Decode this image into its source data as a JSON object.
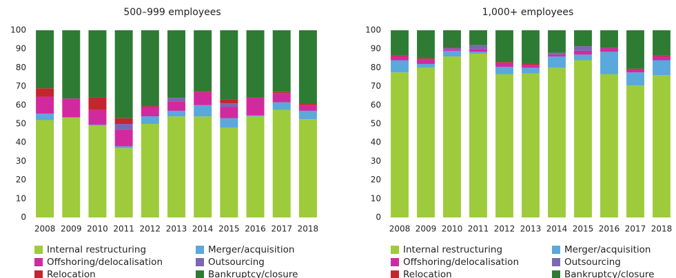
{
  "chart_data": [
    {
      "type": "bar",
      "stacked": true,
      "title": "500–999 employees",
      "categories": [
        "2008",
        "2009",
        "2010",
        "2011",
        "2012",
        "2013",
        "2014",
        "2015",
        "2016",
        "2017",
        "2018"
      ],
      "ylim": [
        0,
        100
      ],
      "yticks": [
        0,
        10,
        20,
        30,
        40,
        50,
        60,
        70,
        80,
        90,
        100
      ],
      "grid": false,
      "series": [
        {
          "name": "Internal restructuring",
          "color": "#9dcb3b",
          "values": [
            52,
            53.5,
            49,
            37,
            50,
            54,
            54,
            48,
            54,
            57.5,
            52.5
          ]
        },
        {
          "name": "Merger/acquisition",
          "color": "#5aa8dc",
          "values": [
            3.5,
            0,
            0.5,
            1,
            4,
            3,
            6,
            5,
            0.5,
            4,
            4.5
          ]
        },
        {
          "name": "Offshoring/delocalisation",
          "color": "#d12a9f",
          "values": [
            9,
            10,
            8,
            9,
            5,
            5,
            7,
            6,
            9.5,
            5,
            3
          ]
        },
        {
          "name": "Outsourcing",
          "color": "#7b68b3",
          "values": [
            0,
            0,
            0,
            3,
            0,
            2,
            0,
            2,
            0,
            0,
            0
          ]
        },
        {
          "name": "Relocation",
          "color": "#c3262e",
          "values": [
            4.5,
            0,
            6.5,
            3,
            0.5,
            0,
            0.5,
            2,
            0,
            0.5,
            1
          ]
        },
        {
          "name": "Bankruptcy/closure",
          "color": "#2e7b34",
          "values": [
            31,
            36.5,
            36,
            47,
            40.5,
            36,
            32.5,
            37,
            36,
            33,
            39
          ]
        }
      ]
    },
    {
      "type": "bar",
      "stacked": true,
      "title": "1,000+ employees",
      "categories": [
        "2008",
        "2009",
        "2010",
        "2011",
        "2012",
        "2013",
        "2014",
        "2015",
        "2016",
        "2017",
        "2018"
      ],
      "ylim": [
        0,
        100
      ],
      "yticks": [
        0,
        10,
        20,
        30,
        40,
        50,
        60,
        70,
        80,
        90,
        100
      ],
      "grid": false,
      "series": [
        {
          "name": "Internal restructuring",
          "color": "#9dcb3b",
          "values": [
            77.5,
            80,
            86,
            87.5,
            76.5,
            77,
            80,
            84,
            76.5,
            70.5,
            76
          ]
        },
        {
          "name": "Merger/acquisition",
          "color": "#5aa8dc",
          "values": [
            6.5,
            2,
            3,
            1,
            4,
            3,
            6,
            3,
            12,
            7,
            8
          ]
        },
        {
          "name": "Offshoring/delocalisation",
          "color": "#d12a9f",
          "values": [
            2,
            2.5,
            0.5,
            1.5,
            2,
            1.5,
            1,
            2,
            2,
            1.5,
            2
          ]
        },
        {
          "name": "Outsourcing",
          "color": "#7b68b3",
          "values": [
            0,
            0,
            1,
            2,
            0,
            0,
            1,
            2.5,
            0,
            0,
            0
          ]
        },
        {
          "name": "Relocation",
          "color": "#c3262e",
          "values": [
            0.5,
            0.5,
            0.5,
            0,
            0.5,
            0.5,
            0,
            0,
            0,
            0.5,
            0.5
          ]
        },
        {
          "name": "Bankruptcy/closure",
          "color": "#2e7b34",
          "values": [
            13.5,
            15,
            9,
            8,
            17,
            18,
            12,
            8.5,
            9.5,
            20.5,
            13.5
          ]
        }
      ]
    }
  ]
}
